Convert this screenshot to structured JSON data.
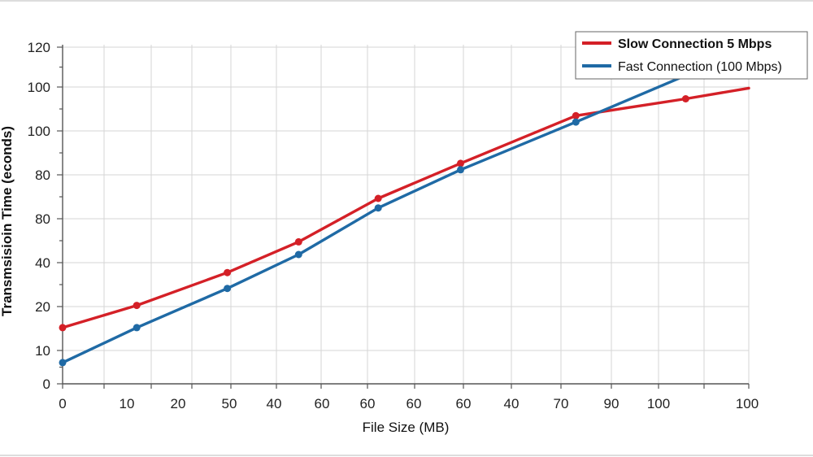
{
  "chart_data": {
    "type": "line",
    "title": "",
    "xlabel": "File Size (MB)",
    "ylabel": "Transmsisioin Time (econds)",
    "x_tick_labels": [
      "0",
      "10",
      "20",
      "50",
      "40",
      "60",
      "60",
      "60",
      "60",
      "40",
      "70",
      "90",
      "100",
      "100"
    ],
    "y_tick_labels": [
      "0",
      "10",
      "20",
      "40",
      "80",
      "80",
      "100",
      "100",
      "120"
    ],
    "grid": true,
    "legend_position": "top-right",
    "series": [
      {
        "name": "Slow Connection 5 Mbps",
        "color": "#d42027",
        "x": [
          0,
          1.35,
          3.0,
          4.3,
          5.75,
          7.25,
          9.35,
          11.35,
          12.5
        ],
        "y": [
          0.53,
          0.74,
          1.05,
          1.34,
          1.75,
          2.08,
          2.53,
          2.69,
          2.79
        ]
      },
      {
        "name": "Fast Connection (100 Mbps)",
        "color": "#1f6aa5",
        "x": [
          0,
          1.35,
          3.0,
          4.3,
          5.75,
          7.25,
          9.35,
          11.35,
          12.5
        ],
        "y": [
          0.2,
          0.53,
          0.9,
          1.22,
          1.66,
          2.02,
          2.47,
          2.91,
          3.2
        ]
      }
    ]
  }
}
